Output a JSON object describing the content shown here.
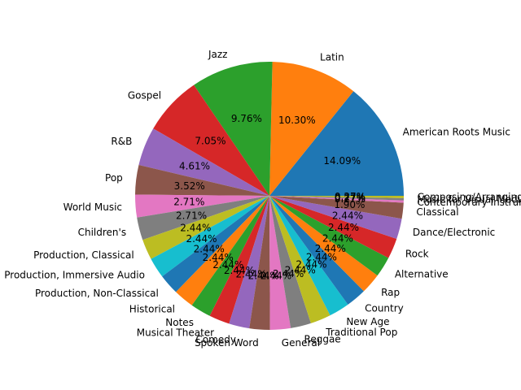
{
  "chart_data": {
    "type": "pie",
    "title": "",
    "start_angle_deg": 0,
    "direction": "counterclockwise",
    "autopct_format": "2 decimals",
    "categories": [
      "American Roots Music",
      "Latin",
      "Jazz",
      "Gospel",
      "R&B",
      "Pop",
      "World Music",
      "Children's",
      "Production, Classical",
      "Production, Immersive Audio",
      "Production, Non-Classical",
      "Historical",
      "Notes",
      "Musical Theater",
      "Comedy",
      "Spoken Word",
      "General",
      "Reggae",
      "Traditional Pop",
      "New Age",
      "Country",
      "Rap",
      "Alternative",
      "Rock",
      "Dance/Electronic",
      "Classical",
      "Contemporary Instrumental",
      "Music for Visual Media",
      "Composing/Arranging"
    ],
    "values": [
      14.09,
      10.3,
      9.76,
      7.05,
      4.61,
      3.52,
      2.71,
      2.71,
      2.44,
      2.44,
      2.44,
      2.44,
      2.44,
      2.44,
      2.44,
      2.44,
      2.44,
      2.44,
      2.44,
      2.44,
      2.44,
      2.44,
      2.44,
      2.44,
      2.44,
      1.9,
      0.27,
      0.27,
      0.27
    ],
    "labels_display": [
      "American Roots Music",
      "Latin",
      "Jazz",
      "Gospel",
      "R&B",
      "Pop",
      "World Music",
      "Children's",
      "Production, Classical",
      "Production, Immersive Audio",
      "Production, Non-Classical",
      "Historical",
      "Notes",
      "Musical Theater",
      "Comedy",
      "Spoken Word",
      "General",
      "Reggae",
      "Traditional Pop",
      "New Age",
      "Country",
      "Rap",
      "Alternative",
      "Rock",
      "Dance/Electronic",
      "Classical",
      "Contemporary Instrumental",
      "Music for Visual Media",
      "Composing/Arranging"
    ],
    "colors": [
      "#1f77b4",
      "#ff7f0e",
      "#2ca02c",
      "#d62728",
      "#9467bd",
      "#8c564b",
      "#e377c2",
      "#7f7f7f",
      "#bcbd22",
      "#17becf"
    ]
  }
}
